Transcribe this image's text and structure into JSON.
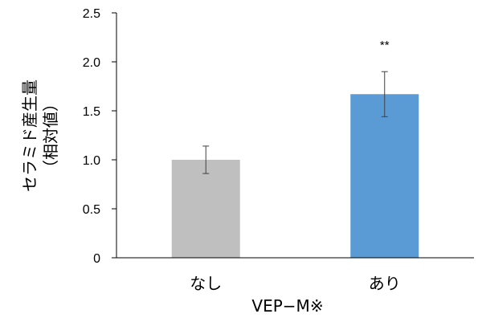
{
  "chart_data": {
    "type": "bar",
    "categories": [
      "なし",
      "あり"
    ],
    "values": [
      1.0,
      1.67
    ],
    "error": [
      0.14,
      0.23
    ],
    "colors": [
      "#bfbfbf",
      "#5b9bd5"
    ],
    "annotations": [
      "",
      "**"
    ],
    "xlabel": "VEP−M※",
    "ylabel_lines": [
      "セラミド産生量",
      "（相対値）"
    ],
    "ylim": [
      0,
      2.5
    ],
    "yticks": [
      0,
      0.5,
      1.0,
      1.5,
      2.0,
      2.5
    ],
    "ytick_labels": [
      "0",
      "0.5",
      "1.0",
      "1.5",
      "2.0",
      "2.5"
    ],
    "grid": false,
    "legend": "none"
  }
}
